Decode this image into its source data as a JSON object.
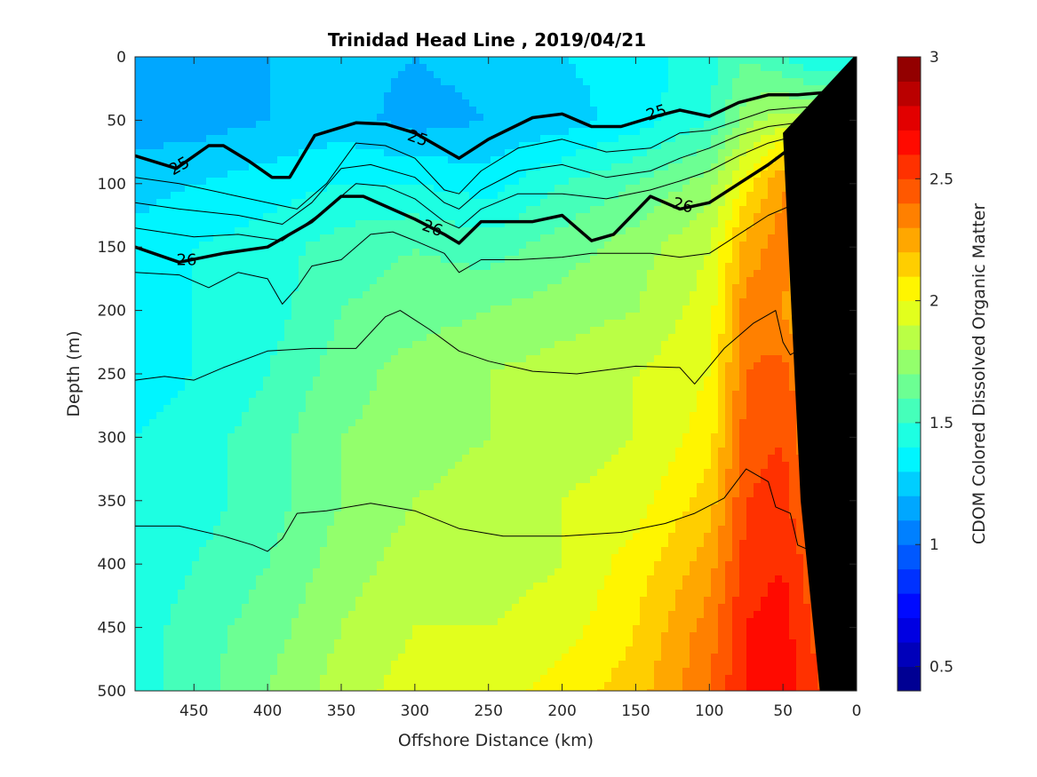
{
  "chart_data": {
    "type": "heatmap",
    "title": "Trinidad Head Line , 2019/04/21",
    "xlabel": "Offshore Distance (km)",
    "ylabel": "Depth (m)",
    "colorbar_label": "CDOM Colored Dissolved Organic Matter",
    "xlim": [
      490,
      0
    ],
    "ylim": [
      0,
      500
    ],
    "y_reversed": true,
    "x_reversed": true,
    "clim": [
      0.4,
      3
    ],
    "x_ticks": [
      "450",
      "400",
      "350",
      "300",
      "250",
      "200",
      "150",
      "100",
      "50",
      "0"
    ],
    "y_ticks": [
      "0",
      "50",
      "100",
      "150",
      "200",
      "250",
      "300",
      "350",
      "400",
      "450",
      "500"
    ],
    "colorbar_ticks": [
      "0.5",
      "1",
      "1.5",
      "2",
      "2.5",
      "3"
    ],
    "colormap": "jet",
    "field_samples": {
      "x": [
        490,
        450,
        400,
        350,
        300,
        250,
        200,
        150,
        100,
        75,
        50,
        25
      ],
      "depth": [
        0,
        50,
        100,
        150,
        200,
        250,
        300,
        350,
        400,
        450,
        500
      ],
      "values": [
        [
          1.2,
          1.15,
          1.2,
          1.25,
          1.2,
          1.25,
          1.3,
          1.35,
          1.45,
          1.6,
          1.5,
          1.4
        ],
        [
          1.15,
          1.15,
          1.2,
          1.25,
          1.15,
          1.2,
          1.25,
          1.35,
          1.5,
          1.75,
          1.85,
          1.8
        ],
        [
          1.25,
          1.3,
          1.35,
          1.4,
          1.4,
          1.35,
          1.5,
          1.6,
          1.75,
          2.05,
          2.3,
          2.2
        ],
        [
          1.35,
          1.4,
          1.45,
          1.55,
          1.6,
          1.55,
          1.65,
          1.75,
          1.9,
          2.25,
          2.35,
          2.1
        ],
        [
          1.35,
          1.4,
          1.45,
          1.6,
          1.65,
          1.7,
          1.75,
          1.8,
          1.95,
          2.35,
          2.3,
          2.1
        ],
        [
          1.35,
          1.4,
          1.5,
          1.65,
          1.75,
          1.8,
          1.85,
          1.9,
          2.0,
          2.4,
          2.45,
          2.2
        ],
        [
          1.4,
          1.45,
          1.55,
          1.7,
          1.75,
          1.8,
          1.85,
          1.9,
          2.05,
          2.45,
          2.5,
          2.25
        ],
        [
          1.4,
          1.45,
          1.55,
          1.7,
          1.8,
          1.85,
          1.9,
          1.95,
          2.15,
          2.5,
          2.55,
          2.3
        ],
        [
          1.4,
          1.5,
          1.6,
          1.75,
          1.85,
          1.85,
          1.9,
          2.05,
          2.25,
          2.55,
          2.6,
          2.4
        ],
        [
          1.45,
          1.55,
          1.65,
          1.8,
          1.9,
          1.9,
          1.95,
          2.1,
          2.35,
          2.6,
          2.65,
          2.45
        ],
        [
          1.45,
          1.55,
          1.7,
          1.85,
          1.95,
          1.95,
          2.05,
          2.15,
          2.4,
          2.6,
          2.65,
          2.5
        ]
      ]
    },
    "contours": [
      {
        "label": "25",
        "bold": true,
        "points": [
          [
            490,
            78
          ],
          [
            462,
            88
          ],
          [
            440,
            70
          ],
          [
            430,
            70
          ],
          [
            413,
            82
          ],
          [
            397,
            95
          ],
          [
            385,
            95
          ],
          [
            368,
            62
          ],
          [
            340,
            52
          ],
          [
            320,
            53
          ],
          [
            300,
            60
          ],
          [
            270,
            80
          ],
          [
            250,
            65
          ],
          [
            220,
            48
          ],
          [
            200,
            45
          ],
          [
            180,
            55
          ],
          [
            160,
            55
          ],
          [
            140,
            48
          ],
          [
            120,
            42
          ],
          [
            100,
            47
          ],
          [
            80,
            36
          ],
          [
            60,
            30
          ],
          [
            40,
            30
          ],
          [
            10,
            27
          ]
        ]
      },
      {
        "label": "26",
        "bold": true,
        "points": [
          [
            490,
            150
          ],
          [
            460,
            162
          ],
          [
            430,
            155
          ],
          [
            400,
            150
          ],
          [
            370,
            130
          ],
          [
            350,
            110
          ],
          [
            335,
            110
          ],
          [
            300,
            128
          ],
          [
            280,
            140
          ],
          [
            270,
            147
          ],
          [
            255,
            130
          ],
          [
            240,
            130
          ],
          [
            220,
            130
          ],
          [
            200,
            125
          ],
          [
            180,
            145
          ],
          [
            165,
            140
          ],
          [
            140,
            110
          ],
          [
            120,
            120
          ],
          [
            100,
            115
          ],
          [
            80,
            100
          ],
          [
            60,
            85
          ],
          [
            45,
            72
          ],
          [
            30,
            82
          ],
          [
            20,
            85
          ],
          [
            10,
            80
          ]
        ]
      },
      {
        "label": "",
        "bold": false,
        "points": [
          [
            490,
            95
          ],
          [
            460,
            100
          ],
          [
            420,
            110
          ],
          [
            380,
            120
          ],
          [
            360,
            100
          ],
          [
            340,
            68
          ],
          [
            320,
            70
          ],
          [
            300,
            80
          ],
          [
            280,
            105
          ],
          [
            270,
            108
          ],
          [
            255,
            90
          ],
          [
            230,
            72
          ],
          [
            200,
            65
          ],
          [
            170,
            75
          ],
          [
            140,
            72
          ],
          [
            120,
            60
          ],
          [
            100,
            58
          ],
          [
            80,
            50
          ],
          [
            60,
            42
          ],
          [
            40,
            40
          ],
          [
            10,
            38
          ]
        ]
      },
      {
        "label": "",
        "bold": false,
        "points": [
          [
            490,
            115
          ],
          [
            460,
            120
          ],
          [
            420,
            125
          ],
          [
            390,
            132
          ],
          [
            370,
            115
          ],
          [
            350,
            88
          ],
          [
            330,
            85
          ],
          [
            300,
            95
          ],
          [
            280,
            115
          ],
          [
            270,
            120
          ],
          [
            255,
            105
          ],
          [
            230,
            90
          ],
          [
            200,
            85
          ],
          [
            170,
            95
          ],
          [
            140,
            90
          ],
          [
            120,
            80
          ],
          [
            100,
            72
          ],
          [
            80,
            62
          ],
          [
            60,
            55
          ],
          [
            40,
            52
          ],
          [
            10,
            50
          ]
        ]
      },
      {
        "label": "",
        "bold": false,
        "points": [
          [
            490,
            135
          ],
          [
            450,
            142
          ],
          [
            420,
            140
          ],
          [
            390,
            145
          ],
          [
            360,
            120
          ],
          [
            340,
            100
          ],
          [
            320,
            102
          ],
          [
            300,
            112
          ],
          [
            280,
            130
          ],
          [
            270,
            135
          ],
          [
            255,
            120
          ],
          [
            230,
            108
          ],
          [
            200,
            108
          ],
          [
            170,
            112
          ],
          [
            140,
            105
          ],
          [
            120,
            98
          ],
          [
            100,
            90
          ],
          [
            80,
            78
          ],
          [
            60,
            68
          ],
          [
            40,
            62
          ],
          [
            10,
            60
          ]
        ]
      },
      {
        "label": "",
        "bold": false,
        "points": [
          [
            490,
            170
          ],
          [
            460,
            172
          ],
          [
            440,
            182
          ],
          [
            420,
            170
          ],
          [
            400,
            175
          ],
          [
            390,
            195
          ],
          [
            380,
            182
          ],
          [
            370,
            165
          ],
          [
            350,
            160
          ],
          [
            330,
            140
          ],
          [
            315,
            138
          ],
          [
            300,
            145
          ],
          [
            280,
            155
          ],
          [
            270,
            170
          ],
          [
            255,
            160
          ],
          [
            230,
            160
          ],
          [
            200,
            158
          ],
          [
            180,
            155
          ],
          [
            160,
            155
          ],
          [
            140,
            155
          ],
          [
            120,
            158
          ],
          [
            100,
            155
          ],
          [
            80,
            140
          ],
          [
            60,
            125
          ],
          [
            40,
            115
          ],
          [
            20,
            120
          ]
        ]
      },
      {
        "label": "",
        "bold": false,
        "points": [
          [
            490,
            255
          ],
          [
            470,
            252
          ],
          [
            450,
            255
          ],
          [
            430,
            245
          ],
          [
            400,
            232
          ],
          [
            370,
            230
          ],
          [
            340,
            230
          ],
          [
            320,
            205
          ],
          [
            310,
            200
          ],
          [
            290,
            215
          ],
          [
            270,
            232
          ],
          [
            250,
            240
          ],
          [
            220,
            248
          ],
          [
            190,
            250
          ],
          [
            150,
            244
          ],
          [
            120,
            245
          ],
          [
            110,
            258
          ],
          [
            90,
            230
          ],
          [
            70,
            210
          ],
          [
            55,
            200
          ],
          [
            50,
            225
          ],
          [
            45,
            235
          ],
          [
            30,
            225
          ]
        ]
      },
      {
        "label": "",
        "bold": false,
        "points": [
          [
            490,
            370
          ],
          [
            460,
            370
          ],
          [
            430,
            378
          ],
          [
            410,
            385
          ],
          [
            400,
            390
          ],
          [
            390,
            380
          ],
          [
            380,
            360
          ],
          [
            360,
            358
          ],
          [
            330,
            352
          ],
          [
            300,
            358
          ],
          [
            270,
            372
          ],
          [
            240,
            378
          ],
          [
            200,
            378
          ],
          [
            160,
            375
          ],
          [
            130,
            368
          ],
          [
            110,
            360
          ],
          [
            90,
            348
          ],
          [
            75,
            325
          ],
          [
            60,
            335
          ],
          [
            55,
            355
          ],
          [
            45,
            360
          ],
          [
            40,
            385
          ],
          [
            30,
            390
          ],
          [
            25,
            380
          ]
        ]
      }
    ],
    "contour_labels": [
      {
        "text": "25",
        "x": 460,
        "y": 86,
        "rotate": -30
      },
      {
        "text": "25",
        "x": 298,
        "y": 64,
        "rotate": 20
      },
      {
        "text": "25",
        "x": 136,
        "y": 44,
        "rotate": -18
      },
      {
        "text": "26",
        "x": 455,
        "y": 160,
        "rotate": 0
      },
      {
        "text": "26",
        "x": 288,
        "y": 135,
        "rotate": 20
      },
      {
        "text": "26",
        "x": 118,
        "y": 117,
        "rotate": 15
      }
    ],
    "bathymetry_polygon": [
      [
        2,
        0
      ],
      [
        0,
        0
      ],
      [
        0,
        500
      ],
      [
        25,
        500
      ],
      [
        38,
        350
      ],
      [
        50,
        60
      ]
    ]
  }
}
